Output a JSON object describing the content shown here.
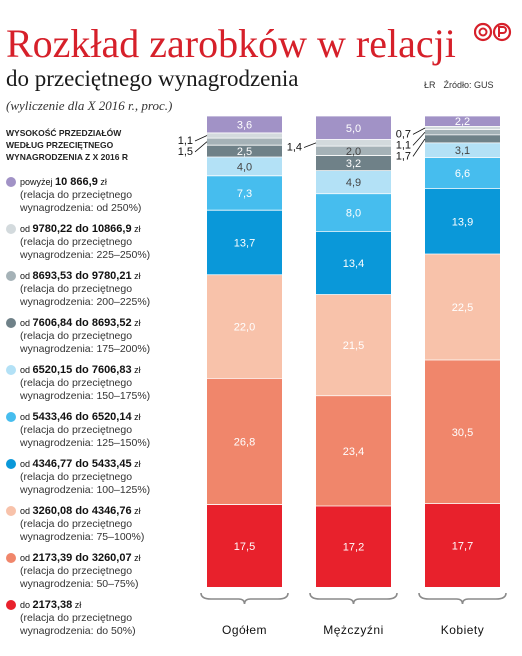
{
  "header": {
    "title": "Rozkład zarobków w relacji",
    "subtitle": "do przeciętnego wynagrodzenia",
    "note": "(wyliczenie dla X 2016 r., proc.)",
    "logo_text": "©P",
    "credit_author": "ŁR",
    "credit_source": "Źródło: GUS"
  },
  "legend": {
    "title_lines": [
      "WYSOKOŚĆ PRZEDZIAŁÓW",
      "WEDŁUG PRZECIĘTNEGO",
      "WYNAGRODZENIA Z X 2016 R"
    ],
    "items": [
      {
        "prefix": "powyżej",
        "range": "10 866,9",
        "unit": "zł",
        "sub1": "(relacja do przeciętnego",
        "sub2": "wynagrodzenia: od 250%)"
      },
      {
        "prefix": "od",
        "range": "9780,22 do 10866,9",
        "unit": "zł",
        "sub1": "(relacja do przeciętnego",
        "sub2": "wynagrodzenia: 225–250%)"
      },
      {
        "prefix": "od",
        "range": "8693,53 do 9780,21",
        "unit": "zł",
        "sub1": "(relacja do przeciętnego",
        "sub2": "wynagrodzenia: 200–225%)"
      },
      {
        "prefix": "od",
        "range": "7606,84 do 8693,52",
        "unit": "zł",
        "sub1": "(relacja do przeciętnego",
        "sub2": "wynagrodzenia: 175–200%)"
      },
      {
        "prefix": "od",
        "range": "6520,15 do 7606,83",
        "unit": "zł",
        "sub1": "(relacja do przeciętnego",
        "sub2": "wynagrodzenia: 150–175%)"
      },
      {
        "prefix": "od",
        "range": "5433,46 do 6520,14",
        "unit": "zł",
        "sub1": "(relacja do przeciętnego",
        "sub2": "wynagrodzenia: 125–150%)"
      },
      {
        "prefix": "od",
        "range": "4346,77 do 5433,45",
        "unit": "zł",
        "sub1": "(relacja do przeciętnego",
        "sub2": "wynagrodzenia: 100–125%)"
      },
      {
        "prefix": "od",
        "range": "3260,08 do 4346,76",
        "unit": "zł",
        "sub1": "(relacja do przeciętnego",
        "sub2": "wynagrodzenia: 75–100%)"
      },
      {
        "prefix": "od",
        "range": "2173,39 do 3260,07",
        "unit": "zł",
        "sub1": "(relacja do przeciętnego",
        "sub2": "wynagrodzenia: 50–75%)"
      },
      {
        "prefix": "do",
        "range": "2173,38",
        "unit": "zł",
        "sub1": "(relacja do przeciętnego",
        "sub2": "wynagrodzenia: do 50%)"
      }
    ]
  },
  "chart_data": {
    "type": "bar",
    "stacked": true,
    "categories": [
      "Ogółem",
      "Mężczyźni",
      "Kobiety"
    ],
    "series": [
      {
        "name": "do 2173,38 zł",
        "color": "#e8212c",
        "values": [
          17.5,
          17.2,
          17.7
        ],
        "labels": [
          "17,5",
          "17,2",
          "17,7"
        ]
      },
      {
        "name": "od 2173,39 do 3260,07 zł",
        "color": "#f0866b",
        "values": [
          26.8,
          23.4,
          30.5
        ],
        "labels": [
          "26,8",
          "23,4",
          "30,5"
        ]
      },
      {
        "name": "od 3260,08 do 4346,76 zł",
        "color": "#f8c2aa",
        "values": [
          22.0,
          21.5,
          22.5
        ],
        "labels": [
          "22,0",
          "21,5",
          "22,5"
        ]
      },
      {
        "name": "od 4346,77 do 5433,45 zł",
        "color": "#0a98d9",
        "values": [
          13.7,
          13.4,
          13.9
        ],
        "labels": [
          "13,7",
          "13,4",
          "13,9"
        ]
      },
      {
        "name": "od 5433,46 do 6520,14 zł",
        "color": "#46bdee",
        "values": [
          7.3,
          8.0,
          6.6
        ],
        "labels": [
          "7,3",
          "8,0",
          "6,6"
        ]
      },
      {
        "name": "od 6520,15 do 7606,83 zł",
        "color": "#b3e1f6",
        "values": [
          4.0,
          4.9,
          3.1
        ],
        "labels": [
          "4,0",
          "4,9",
          "3,1"
        ]
      },
      {
        "name": "od 7606,84 do 8693,52 zł",
        "color": "#6f8188",
        "values": [
          2.5,
          3.2,
          1.7
        ],
        "labels": [
          "2,5",
          "3,2",
          "1,7"
        ]
      },
      {
        "name": "od 8693,53 do 9780,21 zł",
        "color": "#a5b2b7",
        "values": [
          1.5,
          2.0,
          1.1
        ],
        "labels": [
          "1,5",
          "2,0",
          "1,1"
        ]
      },
      {
        "name": "od 9780,22 do 10866,9 zł",
        "color": "#d3dadd",
        "values": [
          1.1,
          1.4,
          0.7
        ],
        "labels": [
          "1,1",
          "1,4",
          "0,7"
        ]
      },
      {
        "name": "powyżej 10 866,9 zł",
        "color": "#a192c6",
        "values": [
          3.6,
          5.0,
          2.2
        ],
        "labels": [
          "3,6",
          "5,0",
          "2,2"
        ]
      }
    ],
    "ylim": [
      0,
      100
    ],
    "legend_position": "left"
  }
}
